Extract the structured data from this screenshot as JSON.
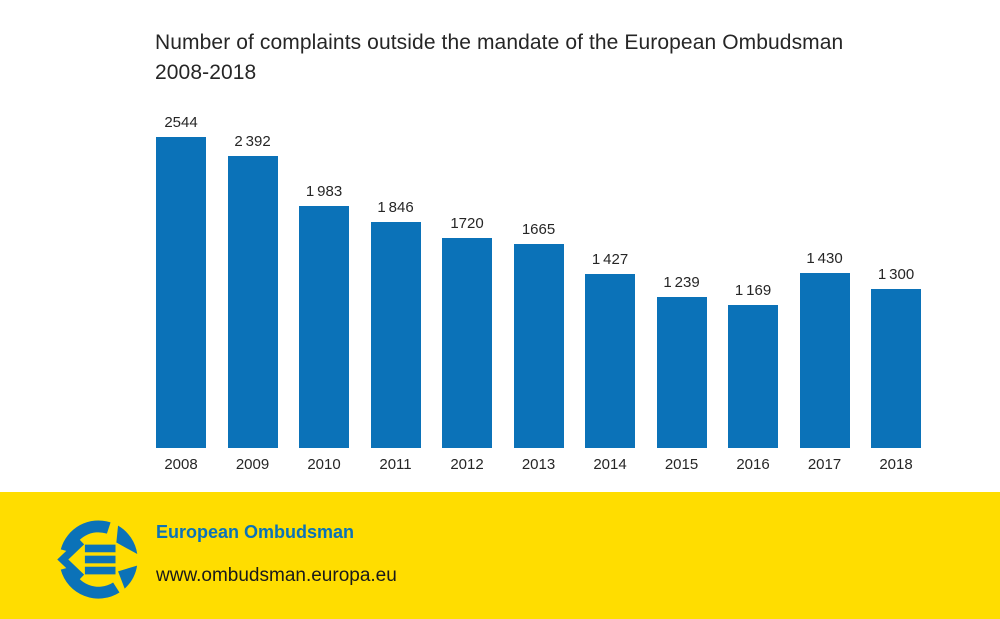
{
  "title": {
    "line1": "Number of complaints outside the mandate of the European Ombudsman",
    "line2": "2008-2018"
  },
  "chart_data": {
    "type": "bar",
    "title": "Number of complaints outside the mandate of the European Ombudsman 2008-2018",
    "categories": [
      "2008",
      "2009",
      "2010",
      "2011",
      "2012",
      "2013",
      "2014",
      "2015",
      "2016",
      "2017",
      "2018"
    ],
    "values": [
      2544,
      2392,
      1983,
      1846,
      1720,
      1665,
      1427,
      1239,
      1169,
      1430,
      1300
    ],
    "value_labels": [
      "2544",
      "2 392",
      "1 983",
      "1 846",
      "1720",
      "1665",
      "1 427",
      "1 239",
      "1 169",
      "1 430",
      "1 300"
    ],
    "xlabel": "",
    "ylabel": "",
    "ylim": [
      0,
      2544
    ],
    "grid": false,
    "legend": "none",
    "axis_lines": false,
    "bar_color": "#0b72b8",
    "label_color": "#262626"
  },
  "footer": {
    "brand": "European Ombudsman",
    "url": "www.ombudsman.europa.eu",
    "background_color": "#ffdd00",
    "brand_color": "#0b72b8",
    "logo": "european-ombudsman-logo"
  }
}
